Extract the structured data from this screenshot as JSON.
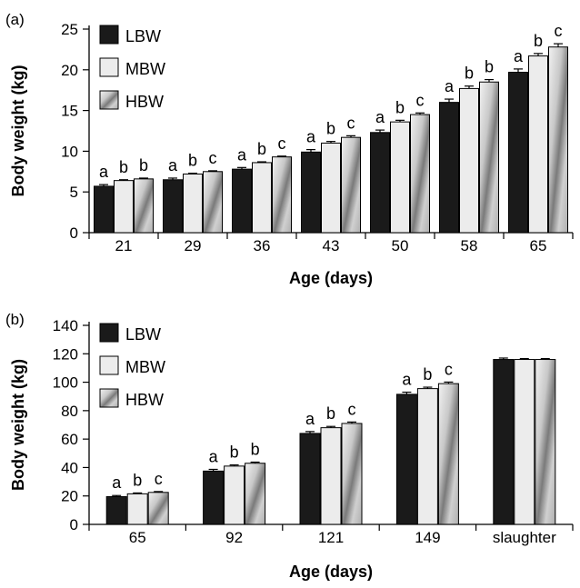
{
  "chart_data": [
    {
      "type": "bar",
      "panel_label": "(a)",
      "xlabel": "Age (days)",
      "ylabel": "Body weight (kg)",
      "ylim": [
        0,
        25
      ],
      "yticks": [
        "0",
        "5",
        "10",
        "15",
        "20",
        "25"
      ],
      "categories": [
        "21",
        "29",
        "36",
        "43",
        "50",
        "58",
        "65"
      ],
      "series": [
        {
          "name": "LBW",
          "values": [
            5.7,
            6.5,
            7.8,
            9.9,
            12.3,
            16.0,
            19.7
          ],
          "errors": [
            0.2,
            0.2,
            0.2,
            0.3,
            0.3,
            0.4,
            0.4
          ],
          "labels": [
            "a",
            "a",
            "a",
            "a",
            "a",
            "a",
            "a"
          ]
        },
        {
          "name": "MBW",
          "values": [
            6.4,
            7.2,
            8.6,
            11.0,
            13.6,
            17.7,
            21.7
          ],
          "errors": [
            0.1,
            0.1,
            0.1,
            0.2,
            0.2,
            0.3,
            0.3
          ],
          "labels": [
            "b",
            "b",
            "b",
            "b",
            "b",
            "b",
            "b"
          ]
        },
        {
          "name": "HBW",
          "values": [
            6.6,
            7.5,
            9.3,
            11.7,
            14.5,
            18.5,
            22.8
          ],
          "errors": [
            0.1,
            0.1,
            0.1,
            0.2,
            0.2,
            0.3,
            0.4
          ],
          "labels": [
            "b",
            "c",
            "c",
            "c",
            "c",
            "b",
            "c"
          ]
        }
      ],
      "legend_position": "top-left",
      "grid": false
    },
    {
      "type": "bar",
      "panel_label": "(b)",
      "xlabel": "Age (days)",
      "ylabel": "Body weight (kg)",
      "ylim": [
        0,
        140
      ],
      "yticks": [
        "0",
        "20",
        "40",
        "60",
        "80",
        "100",
        "120",
        "140"
      ],
      "categories": [
        "65",
        "92",
        "121",
        "149",
        "slaughter"
      ],
      "series": [
        {
          "name": "LBW",
          "values": [
            19.5,
            37.5,
            64.0,
            91.5,
            116.0
          ],
          "errors": [
            0.8,
            1.2,
            1.3,
            1.5,
            1.0
          ],
          "labels": [
            "a",
            "a",
            "a",
            "a",
            ""
          ]
        },
        {
          "name": "MBW",
          "values": [
            21.5,
            41.0,
            68.0,
            95.5,
            116.0
          ],
          "errors": [
            0.6,
            0.8,
            0.9,
            1.0,
            0.6
          ],
          "labels": [
            "b",
            "b",
            "b",
            "b",
            ""
          ]
        },
        {
          "name": "HBW",
          "values": [
            22.5,
            43.0,
            71.0,
            99.0,
            116.0
          ],
          "errors": [
            0.6,
            0.8,
            1.0,
            1.1,
            0.6
          ],
          "labels": [
            "c",
            "b",
            "c",
            "c",
            ""
          ]
        }
      ],
      "legend_position": "top-left",
      "grid": false
    }
  ],
  "colors": {
    "LBW": "#1a1a1a",
    "MBW": "#ececec",
    "HBW": "gradient-gray"
  }
}
